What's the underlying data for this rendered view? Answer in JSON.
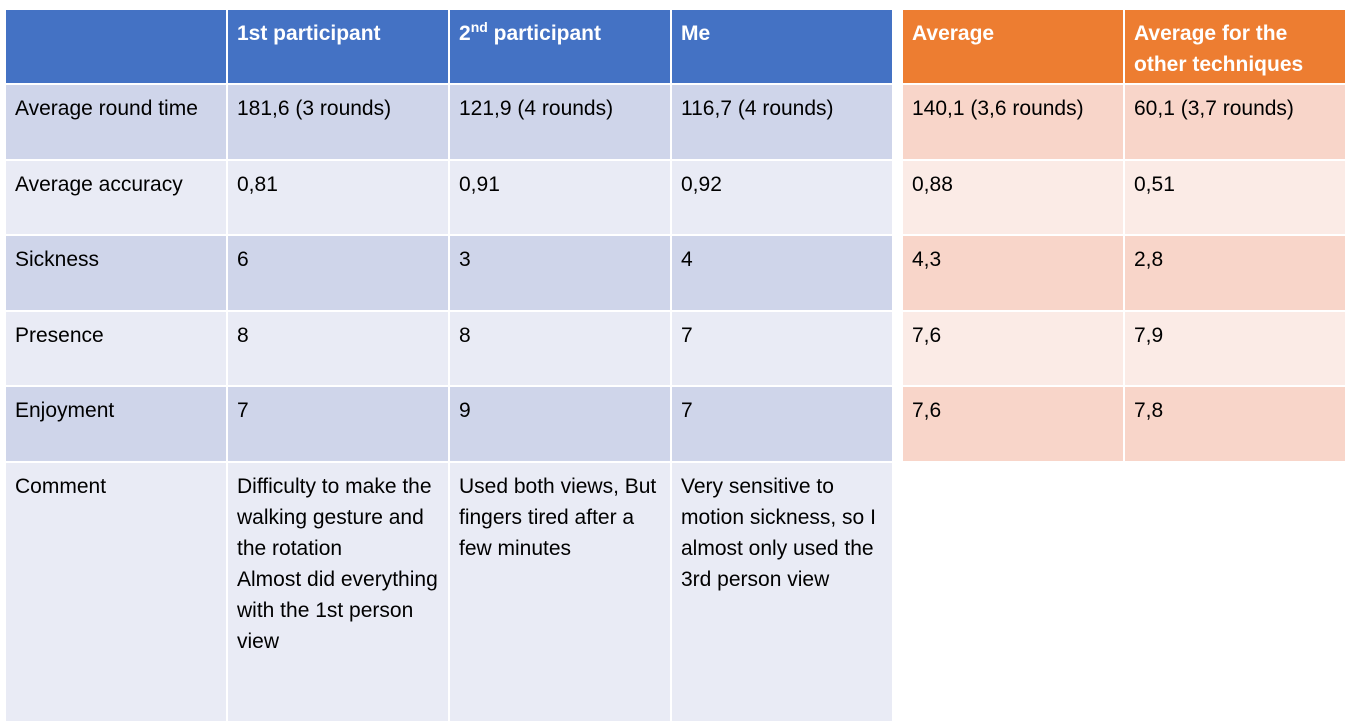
{
  "main_table": {
    "header": {
      "col0": "",
      "col1": "1st participant",
      "col2_prefix": "2",
      "col2_sup": "nd",
      "col2_suffix": " participant",
      "col3": "Me"
    },
    "rows": [
      {
        "label": "Average round time",
        "p1": "181,6 (3 rounds)",
        "p2": "121,9 (4 rounds)",
        "me": "116,7 (4 rounds)"
      },
      {
        "label": "Average accuracy",
        "p1": "0,81",
        "p2": "0,91",
        "me": "0,92"
      },
      {
        "label": "Sickness",
        "p1": "6",
        "p2": "3",
        "me": "4"
      },
      {
        "label": "Presence",
        "p1": "8",
        "p2": "8",
        "me": "7"
      },
      {
        "label": "Enjoyment",
        "p1": "7",
        "p2": "9",
        "me": "7"
      },
      {
        "label": "Comment",
        "p1": "Difficulty to make the walking gesture and the rotation\nAlmost did everything with the 1st person view",
        "p2": "Used both views, But fingers tired after a few minutes",
        "me": "Very sensitive to motion sickness, so I almost only used the 3rd person view"
      }
    ]
  },
  "avg_table": {
    "header": {
      "col0": "Average",
      "col1": "Average for the other techniques"
    },
    "rows": [
      {
        "avg": "140,1 (3,6 rounds)",
        "other": "60,1 (3,7 rounds)"
      },
      {
        "avg": "0,88",
        "other": "0,51"
      },
      {
        "avg": "4,3",
        "other": "2,8"
      },
      {
        "avg": "7,6",
        "other": "7,9"
      },
      {
        "avg": "7,6",
        "other": "7,8"
      }
    ]
  },
  "colors": {
    "blue_header": "#4472c4",
    "orange_header": "#ed7d31"
  }
}
